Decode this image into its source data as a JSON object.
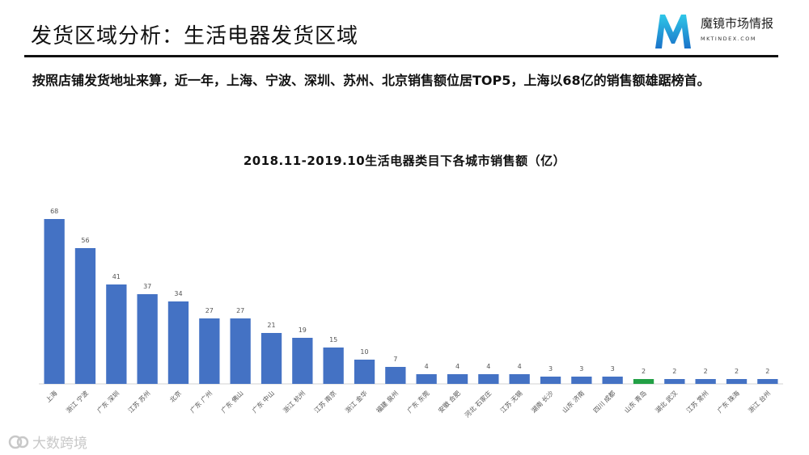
{
  "header": {
    "title": "发货区域分析：生活电器发货区域",
    "logo": {
      "name": "魔镜市场情报",
      "url_text": "MKTINDEX.COM"
    }
  },
  "summary": "按照店铺发货地址来算，近一年，上海、宁波、深圳、苏州、北京销售额位居TOP5，上海以68亿的销售额雄踞榜首。",
  "watermark": "大数跨境",
  "colors": {
    "bar": "#4472C4",
    "highlight": "#22A045",
    "axis": "#d0d0d0",
    "label": "#555555"
  },
  "chart_data": {
    "type": "bar",
    "title": "2018.11-2019.10生活电器类目下各城市销售额（亿）",
    "categories": [
      "上海",
      "浙江 宁波",
      "广东 深圳",
      "江苏 苏州",
      "北京",
      "广东 广州",
      "广东 佛山",
      "广东 中山",
      "浙江 杭州",
      "江苏 南京",
      "浙江 金华",
      "福建 泉州",
      "广东 东莞",
      "安徽 合肥",
      "河北 石家庄",
      "江苏 无锡",
      "湖南 长沙",
      "山东 济南",
      "四川 成都",
      "山东 青岛",
      "湖北 武汉",
      "江苏 常州",
      "广东 珠海",
      "浙江 台州"
    ],
    "values": [
      68,
      56,
      41,
      37,
      34,
      27,
      27,
      21,
      19,
      15,
      10,
      7,
      4,
      4,
      4,
      4,
      3,
      3,
      3,
      2,
      2,
      2,
      2,
      2
    ],
    "highlight_index": 19,
    "ylim": [
      0,
      75
    ],
    "xlabel": "",
    "ylabel": "",
    "grid": false,
    "legend": "none"
  }
}
